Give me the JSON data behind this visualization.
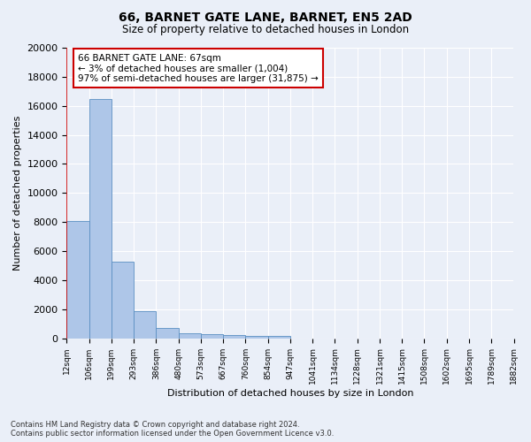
{
  "title": "66, BARNET GATE LANE, BARNET, EN5 2AD",
  "subtitle": "Size of property relative to detached houses in London",
  "xlabel": "Distribution of detached houses by size in London",
  "ylabel": "Number of detached properties",
  "bar_values": [
    8100,
    16500,
    5300,
    1850,
    700,
    350,
    270,
    220,
    180,
    150,
    0,
    0,
    0,
    0,
    0,
    0,
    0,
    0,
    0,
    0
  ],
  "bar_labels": [
    "12sqm",
    "106sqm",
    "199sqm",
    "293sqm",
    "386sqm",
    "480sqm",
    "573sqm",
    "667sqm",
    "760sqm",
    "854sqm",
    "947sqm",
    "1041sqm",
    "1134sqm",
    "1228sqm",
    "1321sqm",
    "1415sqm",
    "1508sqm",
    "1602sqm",
    "1695sqm",
    "1789sqm",
    "1882sqm"
  ],
  "bar_color": "#aec6e8",
  "bar_edge_color": "#5a8fc2",
  "annotation_text": "66 BARNET GATE LANE: 67sqm\n← 3% of detached houses are smaller (1,004)\n97% of semi-detached houses are larger (31,875) →",
  "annotation_box_color": "#ffffff",
  "annotation_box_edge": "#cc0000",
  "property_line_color": "#cc0000",
  "ylim": [
    0,
    20000
  ],
  "yticks": [
    0,
    2000,
    4000,
    6000,
    8000,
    10000,
    12000,
    14000,
    16000,
    18000,
    20000
  ],
  "footer_line1": "Contains HM Land Registry data © Crown copyright and database right 2024.",
  "footer_line2": "Contains public sector information licensed under the Open Government Licence v3.0.",
  "background_color": "#eaeff8",
  "plot_bg_color": "#eaeff8"
}
